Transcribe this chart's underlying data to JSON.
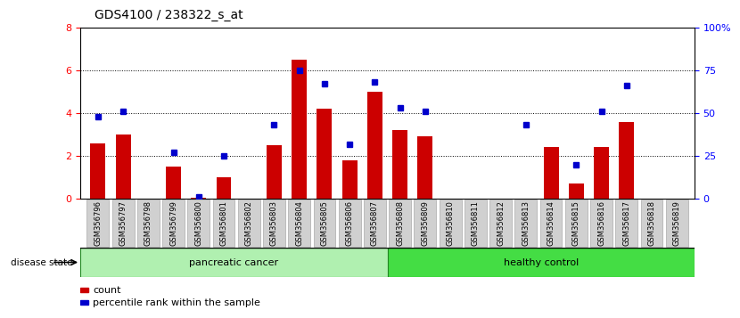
{
  "title": "GDS4100 / 238322_s_at",
  "samples": [
    "GSM356796",
    "GSM356797",
    "GSM356798",
    "GSM356799",
    "GSM356800",
    "GSM356801",
    "GSM356802",
    "GSM356803",
    "GSM356804",
    "GSM356805",
    "GSM356806",
    "GSM356807",
    "GSM356808",
    "GSM356809",
    "GSM356810",
    "GSM356811",
    "GSM356812",
    "GSM356813",
    "GSM356814",
    "GSM356815",
    "GSM356816",
    "GSM356817",
    "GSM356818",
    "GSM356819"
  ],
  "counts": [
    2.6,
    3.0,
    0.0,
    1.5,
    0.05,
    1.0,
    0.0,
    2.5,
    6.5,
    4.2,
    1.8,
    5.0,
    3.2,
    2.9,
    0.0,
    0.0,
    0.0,
    0.0,
    2.4,
    0.7,
    2.4,
    3.6,
    0.0,
    0.0
  ],
  "percentiles": [
    48,
    51,
    null,
    27,
    1,
    25,
    null,
    43,
    75,
    67,
    32,
    68,
    53,
    51,
    null,
    null,
    null,
    43,
    null,
    20,
    51,
    66,
    null,
    null
  ],
  "pancreatic_cancer_count": 12,
  "healthy_control_count": 12,
  "ylim_left": [
    0,
    8
  ],
  "ylim_right": [
    0,
    100
  ],
  "yticks_left": [
    0,
    2,
    4,
    6,
    8
  ],
  "yticks_right": [
    0,
    25,
    50,
    75,
    100
  ],
  "yticklabels_right": [
    "0",
    "25",
    "50",
    "75",
    "100%"
  ],
  "bar_color": "#cc0000",
  "dot_color": "#0000cc",
  "disease_state_label": "disease state",
  "pancreatic_label": "pancreatic cancer",
  "healthy_label": "healthy control",
  "legend_count": "count",
  "legend_pct": "percentile rank within the sample",
  "pancreatic_color": "#b0f0b0",
  "healthy_color": "#44dd44",
  "xtick_bg_color": "#d0d0d0",
  "xtick_border_color": "#aaaaaa"
}
